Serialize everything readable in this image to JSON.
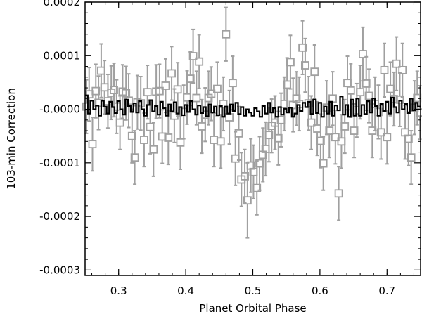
{
  "chart_data": {
    "type": "scatter",
    "title": "",
    "xlabel": "Planet Orbital Phase",
    "ylabel": "103-min Correction",
    "xlim": [
      0.25,
      0.75
    ],
    "ylim": [
      -0.00031,
      0.0002
    ],
    "grid": false,
    "x_ticks": [
      0.3,
      0.4,
      0.5,
      0.6,
      0.7
    ],
    "x_tick_labels": [
      "0.3",
      "0.4",
      "0.5",
      "0.6",
      "0.7"
    ],
    "y_ticks": [
      0.0002,
      0.0001,
      0.0,
      -0.0001,
      -0.0002,
      -0.0003
    ],
    "y_tick_labels": [
      "0.0002",
      "0.0001",
      "-0.0000",
      "-0.0001",
      "-0.0002",
      "-0.0003"
    ],
    "colors": {
      "points": "#a0a0a0",
      "model": "#000000",
      "axes": "#000000"
    },
    "series": [
      {
        "style": "squares-with-error-bars",
        "points": [
          {
            "x": 0.252,
            "y": 5e-06,
            "err": 5e-05
          },
          {
            "x": 0.256,
            "y": 2.8e-05,
            "err": 5e-05
          },
          {
            "x": 0.261,
            "y": -6.5e-05,
            "err": 5e-05
          },
          {
            "x": 0.266,
            "y": 3.4e-05,
            "err": 5e-05
          },
          {
            "x": 0.27,
            "y": 1.2e-05,
            "err": 5e-05
          },
          {
            "x": 0.274,
            "y": 7.2e-05,
            "err": 5e-05
          },
          {
            "x": 0.279,
            "y": 4.1e-05,
            "err": 5e-05
          },
          {
            "x": 0.284,
            "y": 1.5e-05,
            "err": 5e-05
          },
          {
            "x": 0.289,
            "y": 3.1e-05,
            "err": 5e-05
          },
          {
            "x": 0.293,
            "y": 3.6e-05,
            "err": 5e-05
          },
          {
            "x": 0.297,
            "y": 5e-06,
            "err": 5e-05
          },
          {
            "x": 0.302,
            "y": -2.5e-05,
            "err": 5e-05
          },
          {
            "x": 0.306,
            "y": 3.3e-05,
            "err": 5e-05
          },
          {
            "x": 0.311,
            "y": 3e-05,
            "err": 5e-05
          },
          {
            "x": 0.315,
            "y": 1.6e-05,
            "err": 5e-05
          },
          {
            "x": 0.32,
            "y": -5e-05,
            "err": 5e-05
          },
          {
            "x": 0.324,
            "y": -9e-05,
            "err": 5e-05
          },
          {
            "x": 0.328,
            "y": 1.3e-05,
            "err": 5e-05
          },
          {
            "x": 0.333,
            "y": 1.1e-05,
            "err": 5e-05
          },
          {
            "x": 0.338,
            "y": -5.7e-05,
            "err": 5e-05
          },
          {
            "x": 0.343,
            "y": 3.2e-05,
            "err": 5e-05
          },
          {
            "x": 0.347,
            "y": -3.3e-05,
            "err": 5e-05
          },
          {
            "x": 0.352,
            "y": -7.5e-05,
            "err": 5e-05
          },
          {
            "x": 0.356,
            "y": 3.3e-05,
            "err": 5e-05
          },
          {
            "x": 0.361,
            "y": 3.4e-05,
            "err": 5e-05
          },
          {
            "x": 0.365,
            "y": -5.1e-05,
            "err": 5e-05
          },
          {
            "x": 0.37,
            "y": 4.4e-05,
            "err": 5e-05
          },
          {
            "x": 0.374,
            "y": -5.3e-05,
            "err": 5e-05
          },
          {
            "x": 0.379,
            "y": 6.7e-05,
            "err": 5e-05
          },
          {
            "x": 0.383,
            "y": -1.2e-05,
            "err": 5e-05
          },
          {
            "x": 0.388,
            "y": 3.7e-05,
            "err": 5e-05
          },
          {
            "x": 0.392,
            "y": -6.2e-05,
            "err": 5e-05
          },
          {
            "x": 0.397,
            "y": -5e-06,
            "err": 5e-05
          },
          {
            "x": 0.402,
            "y": 2.2e-05,
            "err": 5e-05
          },
          {
            "x": 0.407,
            "y": 5.7e-05,
            "err": 5e-05
          },
          {
            "x": 0.411,
            "y": 9.9e-05,
            "err": 5e-05
          },
          {
            "x": 0.416,
            "y": 2.1e-05,
            "err": 5e-05
          },
          {
            "x": 0.42,
            "y": 8.9e-05,
            "err": 5e-05
          },
          {
            "x": 0.424,
            "y": -3.2e-05,
            "err": 5e-05
          },
          {
            "x": 0.429,
            "y": -1e-05,
            "err": 5e-05
          },
          {
            "x": 0.434,
            "y": 2.1e-05,
            "err": 5e-05
          },
          {
            "x": 0.438,
            "y": 2.9e-05,
            "err": 5e-05
          },
          {
            "x": 0.442,
            "y": -5.7e-05,
            "err": 5e-05
          },
          {
            "x": 0.447,
            "y": 3.8e-05,
            "err": 5e-05
          },
          {
            "x": 0.452,
            "y": -6e-05,
            "err": 5e-05
          },
          {
            "x": 0.456,
            "y": 1e-05,
            "err": 5e-05
          },
          {
            "x": 0.46,
            "y": 0.00014,
            "err": 5e-05
          },
          {
            "x": 0.465,
            "y": -1.5e-05,
            "err": 5e-05
          },
          {
            "x": 0.47,
            "y": 4.9e-05,
            "err": 5e-05
          },
          {
            "x": 0.474,
            "y": -9.2e-05,
            "err": 5e-05
          },
          {
            "x": 0.479,
            "y": -4.5e-05,
            "err": 5e-05
          },
          {
            "x": 0.483,
            "y": -0.000131,
            "err": 5e-05
          },
          {
            "x": 0.488,
            "y": -0.000125,
            "err": 5e-05
          },
          {
            "x": 0.492,
            "y": -0.00017,
            "err": 7e-05
          },
          {
            "x": 0.497,
            "y": -0.000105,
            "err": 5e-05
          },
          {
            "x": 0.501,
            "y": -0.000117,
            "err": 5e-05
          },
          {
            "x": 0.506,
            "y": -0.000147,
            "err": 5e-05
          },
          {
            "x": 0.51,
            "y": -0.000101,
            "err": 5e-05
          },
          {
            "x": 0.515,
            "y": -8.5e-05,
            "err": 5e-05
          },
          {
            "x": 0.519,
            "y": -7.4e-05,
            "err": 5e-05
          },
          {
            "x": 0.524,
            "y": -4.8e-05,
            "err": 5e-05
          },
          {
            "x": 0.528,
            "y": -3.1e-05,
            "err": 5e-05
          },
          {
            "x": 0.533,
            "y": -2.5e-05,
            "err": 5e-05
          },
          {
            "x": 0.538,
            "y": -5.4e-05,
            "err": 5e-05
          },
          {
            "x": 0.542,
            "y": -2e-05,
            "err": 5e-05
          },
          {
            "x": 0.547,
            "y": 1e-05,
            "err": 5e-05
          },
          {
            "x": 0.551,
            "y": 4.6e-05,
            "err": 5e-05
          },
          {
            "x": 0.556,
            "y": 8.8e-05,
            "err": 5e-05
          },
          {
            "x": 0.56,
            "y": 8e-06,
            "err": 5e-05
          },
          {
            "x": 0.565,
            "y": 2e-05,
            "err": 5e-05
          },
          {
            "x": 0.569,
            "y": 1e-05,
            "err": 5e-05
          },
          {
            "x": 0.574,
            "y": 0.000115,
            "err": 5e-05
          },
          {
            "x": 0.578,
            "y": 8.2e-05,
            "err": 5e-05
          },
          {
            "x": 0.583,
            "y": 1.1e-05,
            "err": 5e-05
          },
          {
            "x": 0.587,
            "y": -2.5e-05,
            "err": 5e-05
          },
          {
            "x": 0.592,
            "y": 7e-05,
            "err": 5e-05
          },
          {
            "x": 0.596,
            "y": -3.6e-05,
            "err": 5e-05
          },
          {
            "x": 0.601,
            "y": -5.9e-05,
            "err": 5e-05
          },
          {
            "x": 0.605,
            "y": -0.000101,
            "err": 5e-05
          },
          {
            "x": 0.61,
            "y": 3e-06,
            "err": 5e-05
          },
          {
            "x": 0.614,
            "y": -4e-05,
            "err": 5e-05
          },
          {
            "x": 0.619,
            "y": 2e-05,
            "err": 5e-05
          },
          {
            "x": 0.623,
            "y": -5.2e-05,
            "err": 5e-05
          },
          {
            "x": 0.628,
            "y": -0.000157,
            "err": 5e-05
          },
          {
            "x": 0.632,
            "y": -6e-05,
            "err": 5e-05
          },
          {
            "x": 0.637,
            "y": -3.2e-05,
            "err": 5e-05
          },
          {
            "x": 0.641,
            "y": 4.9e-05,
            "err": 5e-05
          },
          {
            "x": 0.646,
            "y": 3.5e-05,
            "err": 5e-05
          },
          {
            "x": 0.651,
            "y": -4e-05,
            "err": 5e-05
          },
          {
            "x": 0.655,
            "y": -2e-06,
            "err": 5e-05
          },
          {
            "x": 0.66,
            "y": 3.2e-05,
            "err": 5e-05
          },
          {
            "x": 0.664,
            "y": 0.000103,
            "err": 5e-05
          },
          {
            "x": 0.669,
            "y": 4.8e-05,
            "err": 5e-05
          },
          {
            "x": 0.673,
            "y": 2.5e-05,
            "err": 5e-05
          },
          {
            "x": 0.678,
            "y": -4e-05,
            "err": 5e-05
          },
          {
            "x": 0.682,
            "y": 1e-05,
            "err": 5e-05
          },
          {
            "x": 0.687,
            "y": -5e-06,
            "err": 5e-05
          },
          {
            "x": 0.691,
            "y": -4.3e-05,
            "err": 5e-05
          },
          {
            "x": 0.696,
            "y": 7.3e-05,
            "err": 5e-05
          },
          {
            "x": 0.7,
            "y": -5.2e-05,
            "err": 5e-05
          },
          {
            "x": 0.705,
            "y": 3.8e-05,
            "err": 5e-05
          },
          {
            "x": 0.71,
            "y": 1.9e-05,
            "err": 5e-05
          },
          {
            "x": 0.714,
            "y": 8.5e-05,
            "err": 5e-05
          },
          {
            "x": 0.719,
            "y": 1.8e-05,
            "err": 5e-05
          },
          {
            "x": 0.723,
            "y": 7.3e-05,
            "err": 5e-05
          },
          {
            "x": 0.727,
            "y": -4.3e-05,
            "err": 5e-05
          },
          {
            "x": 0.732,
            "y": -5.5e-05,
            "err": 5e-05
          },
          {
            "x": 0.736,
            "y": -9e-05,
            "err": 5e-05
          },
          {
            "x": 0.741,
            "y": 3e-06,
            "err": 5e-05
          },
          {
            "x": 0.745,
            "y": 2.1e-05,
            "err": 5e-05
          },
          {
            "x": 0.749,
            "y": -6e-06,
            "err": 5e-05
          }
        ]
      },
      {
        "style": "step-line",
        "x": [
          0.25,
          0.254,
          0.258,
          0.262,
          0.266,
          0.27,
          0.274,
          0.278,
          0.282,
          0.286,
          0.29,
          0.294,
          0.298,
          0.302,
          0.306,
          0.31,
          0.314,
          0.318,
          0.322,
          0.326,
          0.33,
          0.334,
          0.338,
          0.342,
          0.346,
          0.35,
          0.354,
          0.358,
          0.362,
          0.366,
          0.37,
          0.374,
          0.378,
          0.382,
          0.386,
          0.39,
          0.394,
          0.398,
          0.402,
          0.406,
          0.41,
          0.414,
          0.418,
          0.422,
          0.426,
          0.43,
          0.434,
          0.438,
          0.442,
          0.446,
          0.45,
          0.454,
          0.458,
          0.462,
          0.466,
          0.47,
          0.474,
          0.478,
          0.482,
          0.486,
          0.49,
          0.494,
          0.498,
          0.502,
          0.506,
          0.51,
          0.514,
          0.518,
          0.522,
          0.526,
          0.53,
          0.534,
          0.538,
          0.542,
          0.546,
          0.55,
          0.554,
          0.558,
          0.562,
          0.566,
          0.57,
          0.574,
          0.578,
          0.582,
          0.586,
          0.59,
          0.594,
          0.598,
          0.602,
          0.606,
          0.61,
          0.614,
          0.618,
          0.622,
          0.626,
          0.63,
          0.634,
          0.638,
          0.642,
          0.646,
          0.65,
          0.654,
          0.658,
          0.662,
          0.666,
          0.67,
          0.674,
          0.678,
          0.682,
          0.686,
          0.69,
          0.694,
          0.698,
          0.702,
          0.706,
          0.71,
          0.714,
          0.718,
          0.722,
          0.726,
          0.73,
          0.734,
          0.738,
          0.742,
          0.746
        ],
        "y": [
          2.6e-05,
          -8e-06,
          1.6e-05,
          0.0,
          7e-06,
          -1.2e-05,
          1.6e-05,
          5e-06,
          -8e-06,
          1.4e-05,
          4e-06,
          -7e-06,
          1.5e-05,
          0.0,
          -1e-05,
          1.8e-05,
          6e-06,
          -5e-06,
          1.1e-05,
          -6e-06,
          1.5e-05,
          0.0,
          -1.2e-05,
          8e-06,
          1.7e-05,
          -4e-06,
          6e-06,
          -1e-05,
          1.4e-05,
          2e-06,
          -1.2e-05,
          9e-06,
          -4e-06,
          1.3e-05,
          -8e-06,
          4e-06,
          -1.1e-05,
          8e-06,
          -5e-06,
          1.5e-05,
          0.0,
          -1e-05,
          7e-06,
          -7e-06,
          4e-06,
          -1.3e-05,
          9e-06,
          -6e-06,
          5e-06,
          -1.1e-05,
          6e-06,
          -1.4e-05,
          5e-06,
          -8e-06,
          9e-06,
          -3e-06,
          1.2e-05,
          -9e-06,
          4e-06,
          -1.2e-05,
          0.0,
          -6e-06,
          -1.2e-05,
          2e-06,
          -4e-06,
          -1.4e-05,
          6e-06,
          -8e-06,
          1.2e-05,
          -6e-06,
          2e-06,
          -1.4e-05,
          4e-06,
          -1e-05,
          1e-06,
          -6e-06,
          3e-06,
          -1.4e-05,
          -8e-06,
          8e-06,
          -3e-06,
          1.2e-05,
          4e-06,
          1.4e-05,
          -9e-06,
          1.8e-05,
          -7e-06,
          1.2e-05,
          -1.4e-05,
          5e-06,
          -8e-06,
          1.4e-05,
          -1.2e-05,
          7e-06,
          -2e-06,
          2.4e-05,
          -1e-05,
          8e-06,
          -1.4e-05,
          1.8e-05,
          -1.2e-05,
          2e-05,
          -1.2e-05,
          8e-06,
          -9e-06,
          1.5e-05,
          -6e-06,
          2e-05,
          6e-06,
          -1.2e-05,
          1e-05,
          -3e-06,
          1.4e-05,
          -8e-06,
          2.2e-05,
          4e-06,
          -6e-06,
          1.6e-05,
          0.0,
          1e-05,
          -7e-06,
          2e-05,
          -2e-06,
          1.2e-05,
          5e-06
        ]
      }
    ]
  }
}
